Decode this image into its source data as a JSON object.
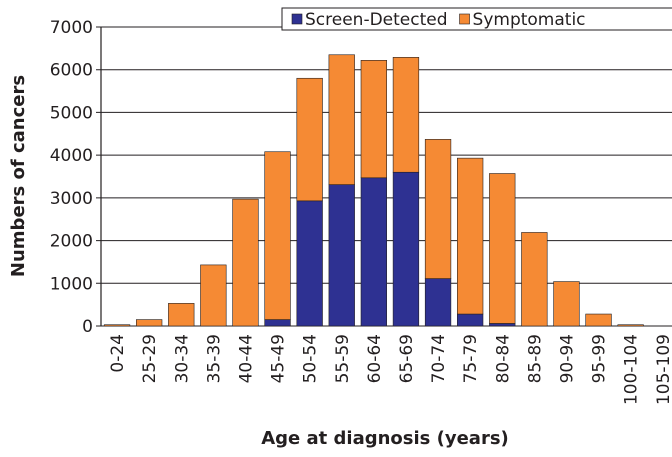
{
  "chart_data": {
    "type": "stacked-bar",
    "x_label": "Age at diagnosis (years)",
    "y_label": "Numbers of cancers",
    "categories": [
      "0-24",
      "25-29",
      "30-34",
      "35-39",
      "40-44",
      "45-49",
      "50-54",
      "55-59",
      "60-64",
      "65-69",
      "70-74",
      "75-79",
      "80-84",
      "85-89",
      "90-94",
      "95-99",
      "100-104",
      "105-109"
    ],
    "series": [
      {
        "name": "Screen-Detected",
        "color": "#2e3192",
        "values": [
          0,
          0,
          0,
          0,
          0,
          150,
          2930,
          3310,
          3470,
          3600,
          1110,
          280,
          60,
          0,
          0,
          0,
          0,
          0
        ]
      },
      {
        "name": "Symptomatic",
        "color": "#f58a34",
        "values": [
          30,
          150,
          530,
          1430,
          2970,
          3930,
          2870,
          3040,
          2750,
          2690,
          3260,
          3650,
          3510,
          2190,
          1040,
          280,
          30,
          0
        ]
      }
    ],
    "ylim": [
      0,
      7000
    ],
    "yticks": [
      0,
      1000,
      2000,
      3000,
      4000,
      5000,
      6000,
      7000
    ],
    "grid": true,
    "legend": "top-right"
  }
}
